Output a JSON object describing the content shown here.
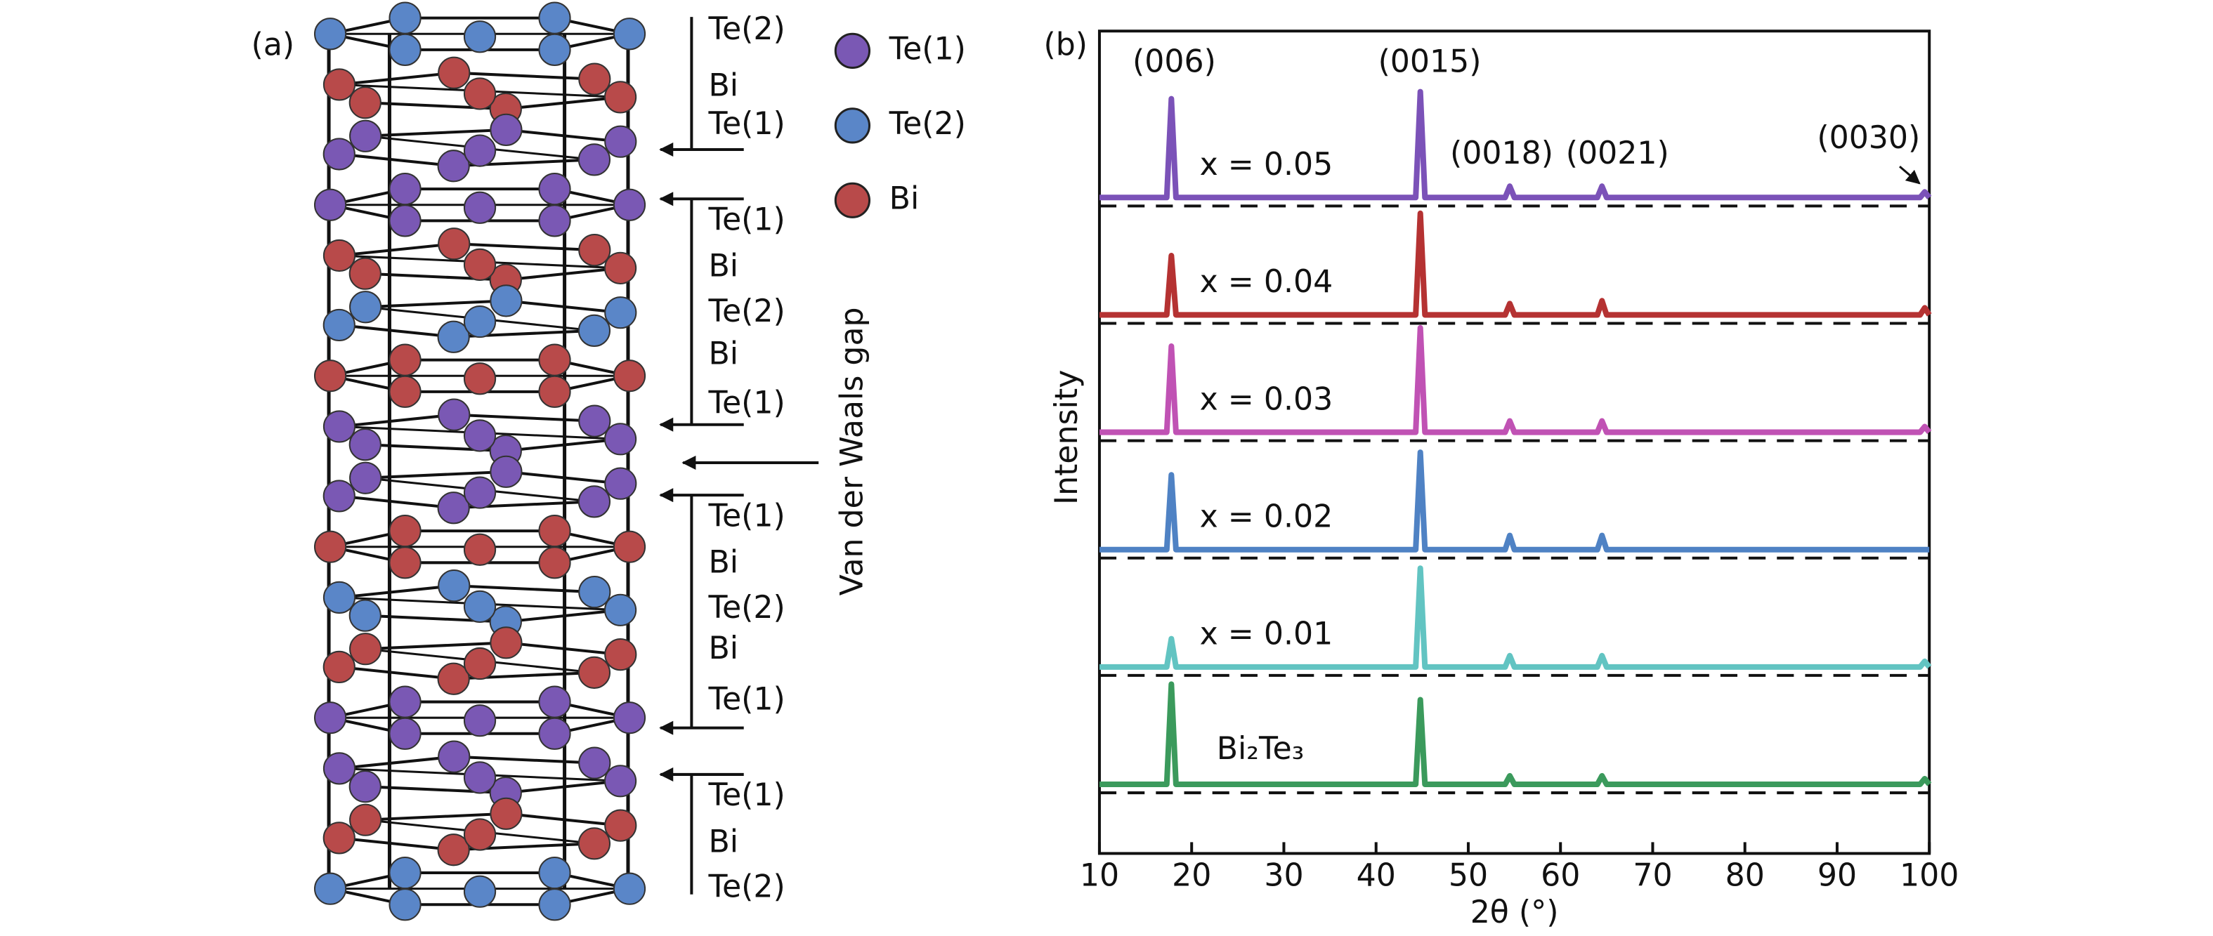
{
  "structure": {
    "panel_label": "(a)",
    "layer_labels": [
      "Te(2)",
      "Bi",
      "Te(1)",
      "Te(1)",
      "Bi",
      "Te(2)",
      "Bi",
      "Te(1)",
      "Te(1)",
      "Bi",
      "Te(2)",
      "Bi",
      "Te(1)",
      "Te(1)",
      "Bi",
      "Te(2)"
    ],
    "legend": [
      {
        "name": "Te(1)",
        "color": "#7a58b4"
      },
      {
        "name": "Te(2)",
        "color": "#5a86c8"
      },
      {
        "name": "Bi",
        "color": "#b84a4a"
      }
    ],
    "gap_label": "Van der Waals gap"
  },
  "chart_data": {
    "type": "line",
    "panel_label": "(b)",
    "x_label": "2θ (°)",
    "y_label": "Intensity",
    "xlim": [
      10,
      100
    ],
    "xticks": [
      10,
      20,
      30,
      40,
      50,
      60,
      70,
      80,
      90,
      100
    ],
    "x": [
      10,
      17.3,
      17.8,
      18.3,
      44.3,
      44.8,
      45.3,
      54.0,
      54.5,
      55.0,
      64.0,
      64.5,
      65.0,
      99.0,
      99.5,
      100
    ],
    "series": [
      {
        "name": "x = 0.05",
        "color": "#7b52b8",
        "values": [
          0,
          0,
          70,
          0,
          0,
          75,
          0,
          0,
          8,
          0,
          0,
          8,
          0,
          0,
          4,
          0
        ]
      },
      {
        "name": "x = 0.04",
        "color": "#b53232",
        "values": [
          0,
          0,
          42,
          0,
          0,
          72,
          0,
          0,
          8,
          0,
          0,
          10,
          0,
          0,
          5,
          0
        ]
      },
      {
        "name": "x = 0.03",
        "color": "#c052b4",
        "values": [
          0,
          0,
          61,
          0,
          0,
          74,
          0,
          0,
          8,
          0,
          0,
          8,
          0,
          0,
          4,
          0
        ]
      },
      {
        "name": "x = 0.02",
        "color": "#4f82c4",
        "values": [
          0,
          0,
          53,
          0,
          0,
          69,
          0,
          0,
          10,
          0,
          0,
          10,
          0,
          0,
          0,
          0
        ]
      },
      {
        "name": "x = 0.01",
        "color": "#62c4c2",
        "values": [
          0,
          0,
          20,
          0,
          0,
          70,
          0,
          0,
          8,
          0,
          0,
          8,
          0,
          0,
          4,
          0
        ]
      },
      {
        "name": "Bi₂Te₃",
        "color": "#3b9a5c",
        "values": [
          0,
          0,
          71,
          0,
          0,
          60,
          0,
          0,
          6,
          0,
          0,
          6,
          0,
          0,
          4,
          0
        ]
      }
    ],
    "annotations": [
      "(006)",
      "(0015)",
      "(0018)",
      "(0021)",
      "(0030)"
    ]
  }
}
